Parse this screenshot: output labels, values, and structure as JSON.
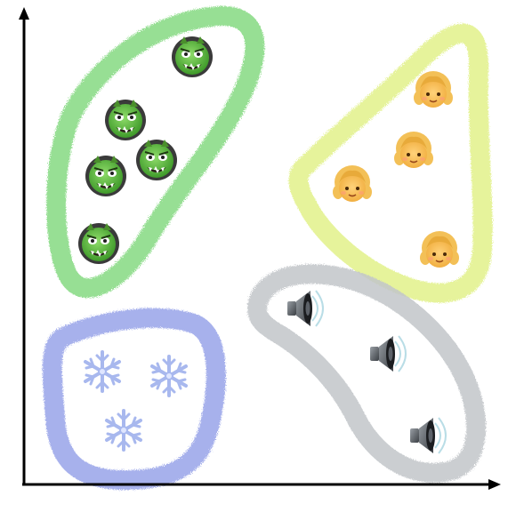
{
  "clusters": [
    {
      "name": "ogres",
      "outline_color": "#7ed87a",
      "item_icon": "ogre-icon",
      "count": 5
    },
    {
      "name": "girls",
      "outline_color": "#e2f28a",
      "item_icon": "girl-icon",
      "count": 4
    },
    {
      "name": "snowflakes",
      "outline_color": "#8a98e6",
      "item_icon": "snowflake-icon",
      "count": 3
    },
    {
      "name": "speakers",
      "outline_color": "#c2c6ca",
      "item_icon": "speaker-icon",
      "count": 3
    }
  ],
  "axes": {
    "color": "#000000",
    "x_label": "",
    "y_label": ""
  }
}
